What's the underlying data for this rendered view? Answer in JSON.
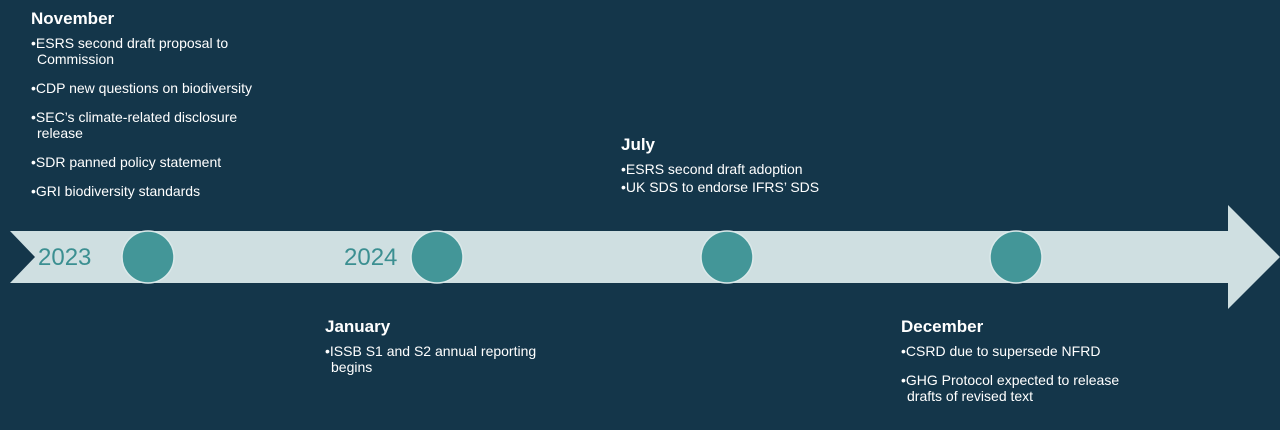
{
  "colors": {
    "background": "#14364a",
    "arrow": "#cfdfe1",
    "marker": "#439698",
    "year_text": "#3b8f91",
    "text": "#ffffff"
  },
  "years": {
    "first": "2023",
    "second": "2024"
  },
  "events": {
    "november": {
      "title": "November",
      "items": [
        "ESRS second draft proposal to Commission",
        "CDP new questions on biodiversity",
        "SEC’s climate-related disclosure release",
        "SDR panned policy statement",
        "GRI biodiversity standards"
      ]
    },
    "january": {
      "title": "January",
      "items": [
        "ISSB S1 and S2 annual reporting begins"
      ]
    },
    "july": {
      "title": "July",
      "items": [
        "ESRS second draft adoption",
        "UK SDS to endorse IFRS’ SDS"
      ]
    },
    "december": {
      "title": "December",
      "items": [
        "CSRD due to supersede NFRD",
        "GHG Protocol expected to release drafts of revised text"
      ]
    }
  }
}
